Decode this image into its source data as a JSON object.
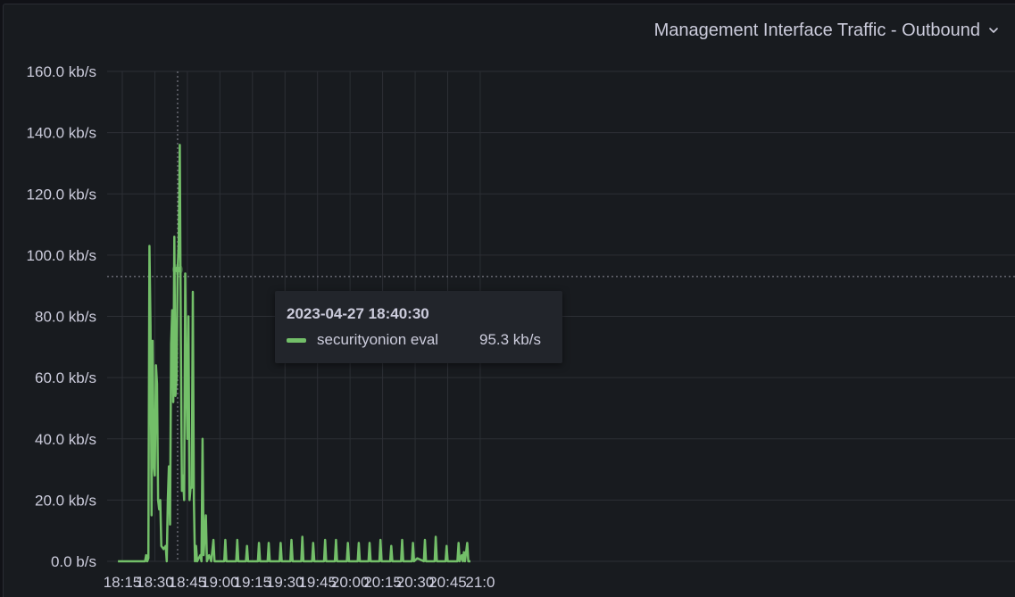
{
  "panel": {
    "title": "Management Interface Traffic - Outbound",
    "menu_icon": "chevron-down-icon"
  },
  "colors": {
    "background": "#111217",
    "panel": "#181b1f",
    "grid": "#2c2f35",
    "series": "#73bf69",
    "text": "#ccccdc",
    "tooltip_bg": "#22252b"
  },
  "tooltip": {
    "time": "2023-04-27 18:40:30",
    "series_name": "securityonion eval",
    "value": "95.3 kb/s"
  },
  "chart_data": {
    "type": "line",
    "title": "Management Interface Traffic - Outbound",
    "xlabel": "",
    "ylabel": "",
    "unit": "kb/s",
    "ylim": [
      0,
      160
    ],
    "y_ticks": [
      0,
      20,
      40,
      60,
      80,
      100,
      120,
      140,
      160
    ],
    "y_tick_labels": [
      "0.0 b/s",
      "20.0 kb/s",
      "40.0 kb/s",
      "60.0 kb/s",
      "80.0 kb/s",
      "100.0 kb/s",
      "120.0 kb/s",
      "140.0 kb/s",
      "160.0 kb/s"
    ],
    "x_range": [
      "18:13",
      "21:00"
    ],
    "x_ticks": [
      "18:15",
      "18:30",
      "18:45",
      "19:00",
      "19:15",
      "19:30",
      "19:45",
      "20:00",
      "20:15",
      "20:30",
      "20:45",
      "21:00"
    ],
    "x_tick_labels": [
      "18:15",
      "18:30",
      "18:45",
      "19:00",
      "19:15",
      "19:30",
      "19:45",
      "20:00",
      "20:15",
      "20:30",
      "20:45",
      "21:0"
    ],
    "grid": true,
    "legend": "none",
    "crosshair": {
      "x": "18:40:30",
      "y": 93
    },
    "hover_point": {
      "x": "18:40:30",
      "y": 95.3
    },
    "series": [
      {
        "name": "securityonion eval",
        "color": "#73bf69",
        "points": [
          [
            "18:13:00",
            0
          ],
          [
            "18:17:00",
            0
          ],
          [
            "18:22:00",
            0
          ],
          [
            "18:25:30",
            0
          ],
          [
            "18:26:00",
            2
          ],
          [
            "18:26:30",
            0
          ],
          [
            "18:27:00",
            1
          ],
          [
            "18:27:30",
            103
          ],
          [
            "18:28:00",
            77
          ],
          [
            "18:28:30",
            15
          ],
          [
            "18:29:00",
            72
          ],
          [
            "18:29:30",
            32
          ],
          [
            "18:30:00",
            28
          ],
          [
            "18:30:30",
            64
          ],
          [
            "18:31:00",
            58
          ],
          [
            "18:31:30",
            20
          ],
          [
            "18:32:00",
            17
          ],
          [
            "18:32:30",
            20
          ],
          [
            "18:33:00",
            5
          ],
          [
            "18:34:00",
            4
          ],
          [
            "18:35:00",
            5
          ],
          [
            "18:35:30",
            0
          ],
          [
            "18:36:00",
            20
          ],
          [
            "18:36:30",
            31
          ],
          [
            "18:37:00",
            12
          ],
          [
            "18:37:30",
            71
          ],
          [
            "18:38:00",
            82
          ],
          [
            "18:38:30",
            52
          ],
          [
            "18:39:00",
            106
          ],
          [
            "18:39:30",
            54
          ],
          [
            "18:40:00",
            60
          ],
          [
            "18:40:30",
            95.3
          ],
          [
            "18:41:00",
            104
          ],
          [
            "18:41:30",
            136
          ],
          [
            "18:42:00",
            72
          ],
          [
            "18:42:30",
            23
          ],
          [
            "18:43:00",
            28
          ],
          [
            "18:43:30",
            20
          ],
          [
            "18:44:00",
            94
          ],
          [
            "18:44:30",
            60
          ],
          [
            "18:45:00",
            40
          ],
          [
            "18:45:30",
            80
          ],
          [
            "18:46:00",
            20
          ],
          [
            "18:46:30",
            24
          ],
          [
            "18:47:00",
            24
          ],
          [
            "18:47:30",
            88
          ],
          [
            "18:48:00",
            20
          ],
          [
            "18:48:30",
            0
          ],
          [
            "18:49:00",
            5
          ],
          [
            "18:49:30",
            0
          ],
          [
            "18:51:00",
            2
          ],
          [
            "18:51:30",
            0
          ],
          [
            "18:52:00",
            40
          ],
          [
            "18:52:30",
            2
          ],
          [
            "18:53:30",
            15
          ],
          [
            "18:54:00",
            0
          ],
          [
            "18:55:00",
            2
          ],
          [
            "18:56:00",
            0
          ],
          [
            "18:57:00",
            7
          ],
          [
            "18:57:30",
            0
          ],
          [
            "19:02:00",
            0
          ],
          [
            "19:02:30",
            7
          ],
          [
            "19:03:00",
            0
          ],
          [
            "19:07:30",
            0
          ],
          [
            "19:08:00",
            7
          ],
          [
            "19:08:30",
            0
          ],
          [
            "19:12:00",
            0
          ],
          [
            "19:12:30",
            5
          ],
          [
            "19:13:00",
            0
          ],
          [
            "19:17:30",
            0
          ],
          [
            "19:18:00",
            6
          ],
          [
            "19:18:30",
            0
          ],
          [
            "19:22:00",
            0
          ],
          [
            "19:22:30",
            6
          ],
          [
            "19:23:00",
            0
          ],
          [
            "19:27:30",
            0
          ],
          [
            "19:28:00",
            6
          ],
          [
            "19:28:30",
            0
          ],
          [
            "19:32:30",
            0
          ],
          [
            "19:33:00",
            7
          ],
          [
            "19:33:30",
            0
          ],
          [
            "19:37:30",
            0
          ],
          [
            "19:38:00",
            8
          ],
          [
            "19:38:30",
            0
          ],
          [
            "19:42:30",
            0
          ],
          [
            "19:43:00",
            6
          ],
          [
            "19:43:30",
            0
          ],
          [
            "19:48:00",
            0
          ],
          [
            "19:48:30",
            7
          ],
          [
            "19:49:00",
            0
          ],
          [
            "19:53:00",
            0
          ],
          [
            "19:53:30",
            7
          ],
          [
            "19:54:00",
            0
          ],
          [
            "19:58:30",
            0
          ],
          [
            "19:59:00",
            6
          ],
          [
            "19:59:30",
            0
          ],
          [
            "20:03:30",
            0
          ],
          [
            "20:04:00",
            6
          ],
          [
            "20:04:30",
            0
          ],
          [
            "20:08:30",
            0
          ],
          [
            "20:09:00",
            6
          ],
          [
            "20:09:30",
            0
          ],
          [
            "20:13:30",
            0
          ],
          [
            "20:14:00",
            7
          ],
          [
            "20:14:30",
            0
          ],
          [
            "20:18:30",
            0
          ],
          [
            "20:19:00",
            5
          ],
          [
            "20:19:30",
            0
          ],
          [
            "20:23:30",
            0
          ],
          [
            "20:24:00",
            7
          ],
          [
            "20:24:30",
            0
          ],
          [
            "20:28:30",
            0
          ],
          [
            "20:29:00",
            6
          ],
          [
            "20:29:30",
            0
          ],
          [
            "20:31:00",
            1
          ],
          [
            "20:34:00",
            0
          ],
          [
            "20:34:30",
            7
          ],
          [
            "20:35:00",
            0
          ],
          [
            "20:39:00",
            0
          ],
          [
            "20:39:30",
            8
          ],
          [
            "20:40:00",
            0
          ],
          [
            "20:44:00",
            0
          ],
          [
            "20:44:30",
            5
          ],
          [
            "20:45:00",
            0
          ],
          [
            "20:49:30",
            0
          ],
          [
            "20:50:00",
            6
          ],
          [
            "20:50:30",
            0
          ],
          [
            "20:51:30",
            2
          ],
          [
            "20:52:00",
            0
          ],
          [
            "20:52:30",
            3
          ],
          [
            "20:53:00",
            0
          ],
          [
            "20:54:00",
            6
          ],
          [
            "20:54:30",
            0
          ],
          [
            "20:55:30",
            0
          ]
        ]
      }
    ]
  }
}
